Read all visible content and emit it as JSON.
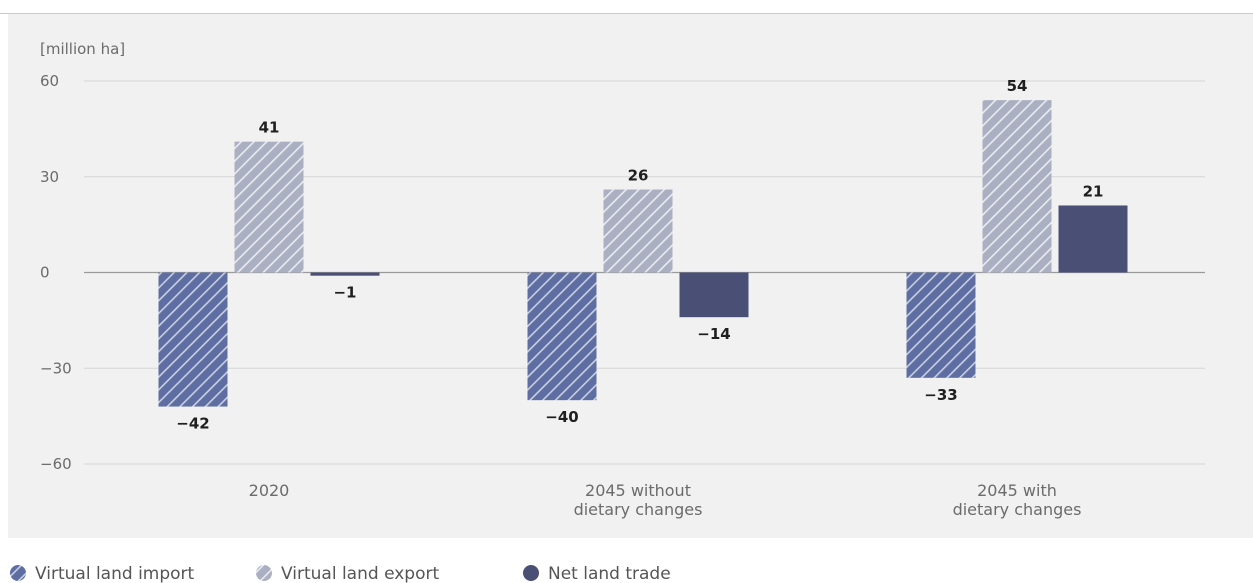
{
  "chart_data": {
    "type": "bar",
    "ylabel": "[million ha]",
    "ylim": [
      -60,
      60
    ],
    "yticks": [
      60,
      30,
      0,
      -30,
      -60
    ],
    "ytick_labels": [
      "60",
      "30",
      "0",
      "−30",
      "−60"
    ],
    "categories": [
      [
        "2020"
      ],
      [
        "2045 without",
        "dietary changes"
      ],
      [
        "2045 with",
        "dietary changes"
      ]
    ],
    "series": [
      {
        "name": "Virtual land import",
        "values": [
          -42,
          -40,
          -33
        ],
        "labels": [
          "−42",
          "−40",
          "−33"
        ],
        "color": "#5e6ea3",
        "pattern": "hatch-dark"
      },
      {
        "name": "Virtual land export",
        "values": [
          41,
          26,
          54
        ],
        "labels": [
          "41",
          "26",
          "54"
        ],
        "color": "#aab0c1",
        "pattern": "hatch-light"
      },
      {
        "name": "Net land trade",
        "values": [
          -1,
          -14,
          21
        ],
        "labels": [
          "−1",
          "−14",
          "21"
        ],
        "color": "#4a5075",
        "pattern": "solid"
      }
    ],
    "grid": true,
    "legend": "bottom-left"
  }
}
